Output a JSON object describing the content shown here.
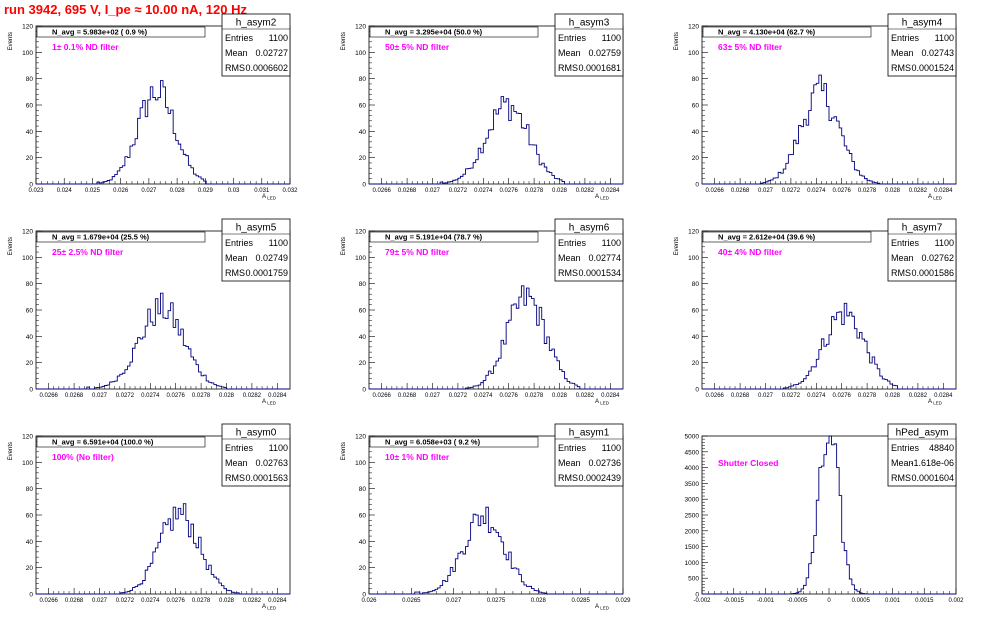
{
  "page": {
    "title": "run 3942,   695 V, I_pe ≈ 10.00 nA, 120 Hz"
  },
  "labels": {
    "entries": "Entries",
    "mean": "Mean",
    "rms": "RMS"
  },
  "colors": {
    "histogram": "#000080",
    "title_text": "#ff0000",
    "filter_text": "#ff00ff"
  },
  "chart_data": [
    {
      "type": "histogram",
      "name": "h_asym2",
      "ylabel": "Events",
      "xlabel": "A_LED",
      "annotation": "N_avg = 5.983e+02 ( 0.9 %)",
      "filter": "1± 0.1% ND filter",
      "entries": "1100",
      "mean": "0.02727",
      "rms": "0.0006602",
      "xlim": [
        0.023,
        0.032
      ],
      "ylim": [
        0,
        120
      ],
      "yticks": [
        "0",
        "20",
        "40",
        "60",
        "80",
        "100",
        "120"
      ],
      "xticks": [
        "0.023",
        "0.024",
        "0.025",
        "0.026",
        "0.027",
        "0.028",
        "0.029",
        "0.03",
        "0.031",
        "0.032"
      ],
      "xtick_values": [
        0.023,
        0.024,
        0.025,
        0.026,
        0.027,
        0.028,
        0.029,
        0.03,
        0.031,
        0.032
      ],
      "peak": 0.02727,
      "sigma": 0.00066,
      "peak_height": 70,
      "range": [
        0.0252,
        0.029
      ]
    },
    {
      "type": "histogram",
      "name": "h_asym3",
      "ylabel": "Events",
      "xlabel": "A_LED",
      "annotation": "N_avg = 3.295e+04 (50.0 %)",
      "filter": "50± 5% ND filter",
      "entries": "1100",
      "mean": "0.02759",
      "rms": "0.0001681",
      "xlim": [
        0.0265,
        0.0285
      ],
      "ylim": [
        0,
        120
      ],
      "yticks": [
        "0",
        "20",
        "40",
        "60",
        "80",
        "100",
        "120"
      ],
      "xticks": [
        "0.0266",
        "0.0268",
        "0.027",
        "0.0272",
        "0.0274",
        "0.0276",
        "0.0278",
        "0.028",
        "0.0282",
        "0.0284"
      ],
      "xtick_values": [
        0.0266,
        0.0268,
        0.027,
        0.0272,
        0.0274,
        0.0276,
        0.0278,
        0.028,
        0.0282,
        0.0284
      ],
      "peak": 0.02759,
      "sigma": 0.000168,
      "peak_height": 60,
      "range": [
        0.02705,
        0.02805
      ]
    },
    {
      "type": "histogram",
      "name": "h_asym4",
      "ylabel": "Events",
      "xlabel": "A_LED",
      "annotation": "N_avg = 4.130e+04 (62.7 %)",
      "filter": "63± 5% ND filter",
      "entries": "1100",
      "mean": "0.02743",
      "rms": "0.0001524",
      "xlim": [
        0.0265,
        0.0285
      ],
      "ylim": [
        0,
        120
      ],
      "yticks": [
        "0",
        "20",
        "40",
        "60",
        "80",
        "100",
        "120"
      ],
      "xticks": [
        "0.0266",
        "0.0268",
        "0.027",
        "0.0272",
        "0.0274",
        "0.0276",
        "0.0278",
        "0.028",
        "0.0282",
        "0.0284"
      ],
      "xtick_values": [
        0.0266,
        0.0268,
        0.027,
        0.0272,
        0.0274,
        0.0276,
        0.0278,
        0.028,
        0.0282,
        0.0284
      ],
      "peak": 0.02743,
      "sigma": 0.000152,
      "peak_height": 69,
      "range": [
        0.02695,
        0.0279
      ]
    },
    {
      "type": "histogram",
      "name": "h_asym5",
      "ylabel": "Events",
      "xlabel": "A_LED",
      "annotation": "N_avg = 1.679e+04 (25.5 %)",
      "filter": "25± 2.5% ND filter",
      "entries": "1100",
      "mean": "0.02749",
      "rms": "0.0001759",
      "xlim": [
        0.0265,
        0.0285
      ],
      "ylim": [
        0,
        120
      ],
      "yticks": [
        "0",
        "20",
        "40",
        "60",
        "80",
        "100",
        "120"
      ],
      "xticks": [
        "0.0266",
        "0.0268",
        "0.027",
        "0.0272",
        "0.0274",
        "0.0276",
        "0.0278",
        "0.028",
        "0.0282",
        "0.0284"
      ],
      "xtick_values": [
        0.0266,
        0.0268,
        0.027,
        0.0272,
        0.0274,
        0.0276,
        0.0278,
        0.028,
        0.0282,
        0.0284
      ],
      "peak": 0.02749,
      "sigma": 0.000176,
      "peak_height": 61,
      "range": [
        0.0269,
        0.028
      ]
    },
    {
      "type": "histogram",
      "name": "h_asym6",
      "ylabel": "Events",
      "xlabel": "A_LED",
      "annotation": "N_avg = 5.191e+04 (78.7 %)",
      "filter": "79± 5% ND filter",
      "entries": "1100",
      "mean": "0.02774",
      "rms": "0.0001534",
      "xlim": [
        0.0265,
        0.0285
      ],
      "ylim": [
        0,
        120
      ],
      "yticks": [
        "0",
        "20",
        "40",
        "60",
        "80",
        "100",
        "120"
      ],
      "xticks": [
        "0.0266",
        "0.0268",
        "0.027",
        "0.0272",
        "0.0274",
        "0.0276",
        "0.0278",
        "0.028",
        "0.0282",
        "0.0284"
      ],
      "xtick_values": [
        0.0266,
        0.0268,
        0.027,
        0.0272,
        0.0274,
        0.0276,
        0.0278,
        0.028,
        0.0282,
        0.0284
      ],
      "peak": 0.02774,
      "sigma": 0.000153,
      "peak_height": 69,
      "range": [
        0.0272,
        0.02815
      ]
    },
    {
      "type": "histogram",
      "name": "h_asym7",
      "ylabel": "Events",
      "xlabel": "A_LED",
      "annotation": "N_avg = 2.612e+04 (39.6 %)",
      "filter": "40± 4% ND filter",
      "entries": "1100",
      "mean": "0.02762",
      "rms": "0.0001586",
      "xlim": [
        0.0265,
        0.0285
      ],
      "ylim": [
        0,
        120
      ],
      "yticks": [
        "0",
        "20",
        "40",
        "60",
        "80",
        "100",
        "120"
      ],
      "xticks": [
        "0.0266",
        "0.0268",
        "0.027",
        "0.0272",
        "0.0274",
        "0.0276",
        "0.0278",
        "0.028",
        "0.0282",
        "0.0284"
      ],
      "xtick_values": [
        0.0266,
        0.0268,
        0.027,
        0.0272,
        0.0274,
        0.0276,
        0.0278,
        0.028,
        0.0282,
        0.0284
      ],
      "peak": 0.02762,
      "sigma": 0.000159,
      "peak_height": 58,
      "range": [
        0.0271,
        0.02805
      ]
    },
    {
      "type": "histogram",
      "name": "h_asym0",
      "ylabel": "Events",
      "xlabel": "A_LED",
      "annotation": "N_avg = 6.591e+04 (100.0 %)",
      "filter": "100% (No filter)",
      "entries": "1100",
      "mean": "0.02763",
      "rms": "0.0001563",
      "xlim": [
        0.0265,
        0.0285
      ],
      "ylim": [
        0,
        120
      ],
      "yticks": [
        "0",
        "20",
        "40",
        "60",
        "80",
        "100",
        "120"
      ],
      "xticks": [
        "0.0266",
        "0.0268",
        "0.027",
        "0.0272",
        "0.0274",
        "0.0276",
        "0.0278",
        "0.028",
        "0.0282",
        "0.0284"
      ],
      "xtick_values": [
        0.0266,
        0.0268,
        0.027,
        0.0272,
        0.0274,
        0.0276,
        0.0278,
        0.028,
        0.0282,
        0.0284
      ],
      "peak": 0.02763,
      "sigma": 0.000156,
      "peak_height": 61,
      "range": [
        0.0271,
        0.0281
      ]
    },
    {
      "type": "histogram",
      "name": "h_asym1",
      "ylabel": "Events",
      "xlabel": "A_LED",
      "annotation": "N_avg = 6.058e+03 ( 9.2 %)",
      "filter": "10± 1% ND filter",
      "entries": "1100",
      "mean": "0.02736",
      "rms": "0.0002439",
      "xlim": [
        0.026,
        0.029
      ],
      "ylim": [
        0,
        120
      ],
      "yticks": [
        "0",
        "20",
        "40",
        "60",
        "80",
        "100",
        "120"
      ],
      "xticks": [
        "0.026",
        "0.0265",
        "0.027",
        "0.0275",
        "0.028",
        "0.0285",
        "0.029"
      ],
      "xtick_values": [
        0.026,
        0.0265,
        0.027,
        0.0275,
        0.028,
        0.0285,
        0.029
      ],
      "peak": 0.02736,
      "sigma": 0.000244,
      "peak_height": 60,
      "range": [
        0.0265,
        0.0282
      ]
    },
    {
      "type": "histogram",
      "name": "hPed_asym",
      "ylabel": "",
      "xlabel": "",
      "annotation": "",
      "filter": "Shutter Closed",
      "entries": "48840",
      "mean": "-1.618e-06",
      "rms": "0.0001604",
      "xlim": [
        -0.002,
        0.002
      ],
      "ylim": [
        0,
        5000
      ],
      "yticks": [
        "0",
        "500",
        "1000",
        "1500",
        "2000",
        "2500",
        "3000",
        "3500",
        "4000",
        "4500",
        "5000"
      ],
      "xticks": [
        "-0.002",
        "-0.0015",
        "-0.001",
        "-0.0005",
        "0",
        "0.0005",
        "0.001",
        "0.0015",
        "0.002"
      ],
      "xtick_values": [
        -0.002,
        -0.0015,
        -0.001,
        -0.0005,
        0,
        0.0005,
        0.001,
        0.0015,
        0.002
      ],
      "peak": 0.0,
      "sigma": 0.00016,
      "peak_height": 4950,
      "range": [
        -0.0007,
        0.0007
      ]
    }
  ]
}
